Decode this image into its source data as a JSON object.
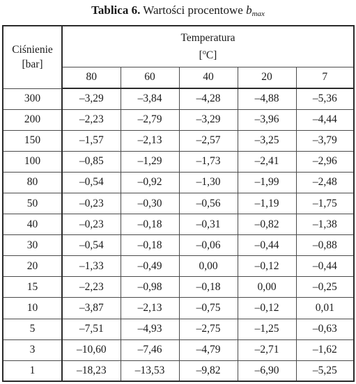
{
  "caption": {
    "label": "Tablica 6.",
    "text": " Wartości procentowe ",
    "symbol": "b",
    "subscript": "max"
  },
  "header": {
    "pressure_line1": "Ciśnienie",
    "pressure_line2": "[bar]",
    "temperature_line1": "Temperatura",
    "temperature_bracket_open": "[",
    "temperature_degree": "o",
    "temperature_unit_rest": "C]",
    "temperatures": [
      "80",
      "60",
      "40",
      "20",
      "7"
    ]
  },
  "rows": [
    {
      "pressure": "300",
      "values": [
        "–3,29",
        "–3,84",
        "–4,28",
        "–4,88",
        "–5,36"
      ]
    },
    {
      "pressure": "200",
      "values": [
        "–2,23",
        "–2,79",
        "–3,29",
        "–3,96",
        "–4,44"
      ]
    },
    {
      "pressure": "150",
      "values": [
        "–1,57",
        "–2,13",
        "–2,57",
        "–3,25",
        "–3,79"
      ]
    },
    {
      "pressure": "100",
      "values": [
        "–0,85",
        "–1,29",
        "–1,73",
        "–2,41",
        "–2,96"
      ]
    },
    {
      "pressure": "80",
      "values": [
        "–0,54",
        "–0,92",
        "–1,30",
        "–1,99",
        "–2,48"
      ]
    },
    {
      "pressure": "50",
      "values": [
        "–0,23",
        "–0,30",
        "–0,56",
        "–1,19",
        "–1,75"
      ]
    },
    {
      "pressure": "40",
      "values": [
        "–0,23",
        "–0,18",
        "–0,31",
        "–0,82",
        "–1,38"
      ]
    },
    {
      "pressure": "30",
      "values": [
        "–0,54",
        "–0,18",
        "–0,06",
        "–0,44",
        "–0,88"
      ]
    },
    {
      "pressure": "20",
      "values": [
        "–1,33",
        "–0,49",
        "0,00",
        "–0,12",
        "–0,44"
      ]
    },
    {
      "pressure": "15",
      "values": [
        "–2,23",
        "–0,98",
        "–0,18",
        "0,00",
        "–0,25"
      ]
    },
    {
      "pressure": "10",
      "values": [
        "–3,87",
        "–2,13",
        "–0,75",
        "–0,12",
        "0,01"
      ]
    },
    {
      "pressure": "5",
      "values": [
        "–7,51",
        "–4,93",
        "–2,75",
        "–1,25",
        "–0,63"
      ]
    },
    {
      "pressure": "3",
      "values": [
        "–10,60",
        "–7,46",
        "–4,79",
        "–2,71",
        "–1,62"
      ]
    },
    {
      "pressure": "1",
      "values": [
        "–18,23",
        "–13,53",
        "–9,82",
        "–6,90",
        "–5,25"
      ]
    }
  ]
}
